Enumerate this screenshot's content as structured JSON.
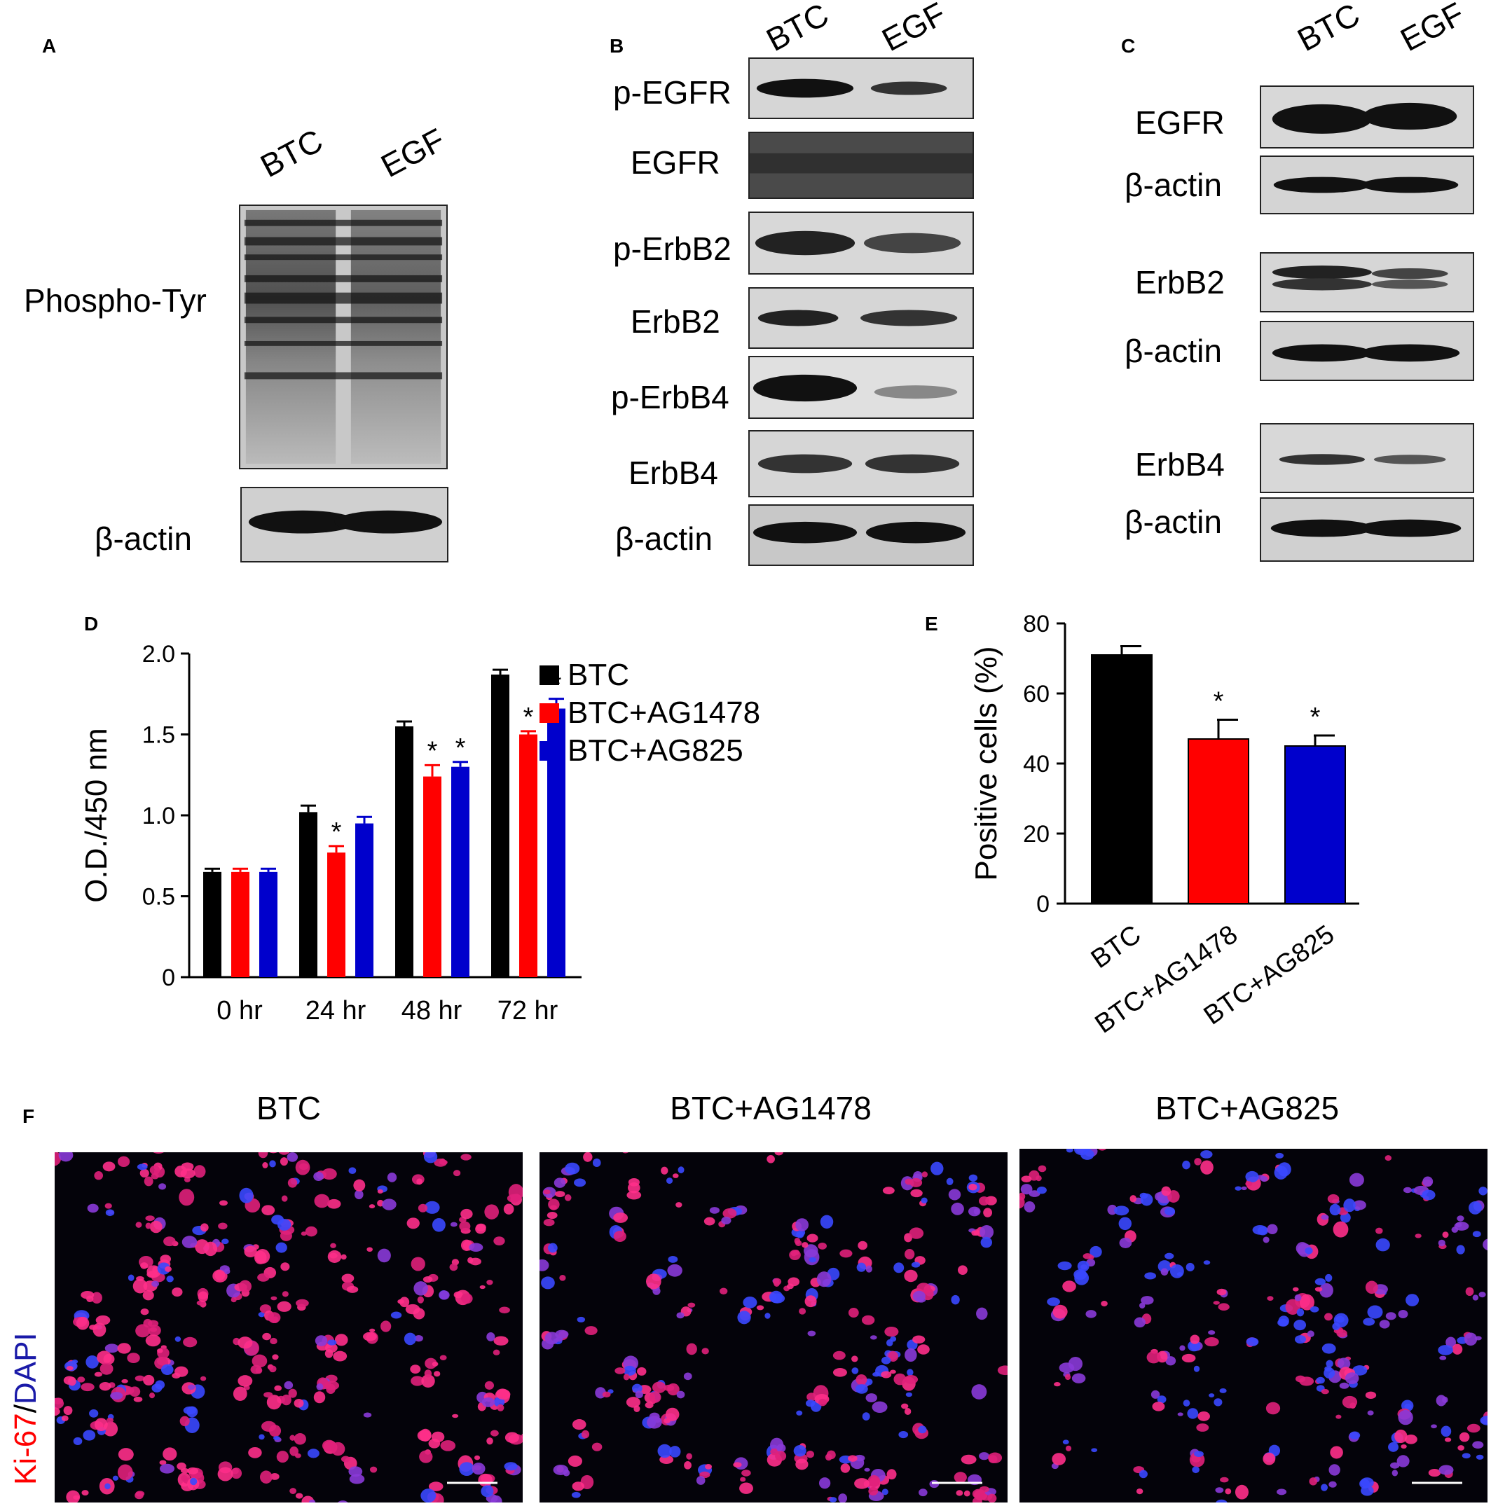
{
  "panels": {
    "A": {
      "letter": "A",
      "lanes": [
        "BTC",
        "EGF"
      ],
      "labels": {
        "phospho": "Phospho-Tyr",
        "actin": "β-actin"
      }
    },
    "B": {
      "letter": "B",
      "lanes": [
        "BTC",
        "EGF"
      ],
      "rows": [
        "p-EGFR",
        "EGFR",
        "p-ErbB2",
        "ErbB2",
        "p-ErbB4",
        "ErbB4",
        "β-actin"
      ]
    },
    "C": {
      "letter": "C",
      "lanes": [
        "BTC",
        "EGF"
      ],
      "rows": [
        "EGFR",
        "β-actin",
        "ErbB2",
        "β-actin",
        "ErbB4",
        "β-actin"
      ]
    },
    "D": {
      "letter": "D"
    },
    "E": {
      "letter": "E"
    },
    "F": {
      "letter": "F",
      "titles": [
        "BTC",
        "BTC+AG1478",
        "BTC+AG825"
      ],
      "stain_label": {
        "red": "Ki-67",
        "slash": "/",
        "blue": "DAPI"
      }
    }
  },
  "chart_data": [
    {
      "panel": "D",
      "type": "bar",
      "categories": [
        "0 hr",
        "24 hr",
        "48 hr",
        "72 hr"
      ],
      "ylabel": "O.D./450 nm",
      "xlabel": "",
      "ylim": [
        0,
        2.0
      ],
      "yticks": [
        "0",
        "0.5",
        "1.0",
        "1.5",
        "2.0"
      ],
      "ytick_values": [
        0,
        0.5,
        1.0,
        1.5,
        2.0
      ],
      "legend": "right",
      "significance_marker": "*",
      "series": [
        {
          "name": "BTC",
          "color": "#000000",
          "values": [
            0.65,
            1.02,
            1.55,
            1.87
          ],
          "errors": [
            0.02,
            0.04,
            0.03,
            0.03
          ],
          "significant": [
            false,
            false,
            false,
            false
          ]
        },
        {
          "name": "BTC+AG1478",
          "color": "#ff0000",
          "values": [
            0.65,
            0.77,
            1.24,
            1.5
          ],
          "errors": [
            0.02,
            0.04,
            0.07,
            0.02
          ],
          "significant": [
            false,
            true,
            true,
            true
          ]
        },
        {
          "name": "BTC+AG825",
          "color": "#0000cc",
          "values": [
            0.65,
            0.95,
            1.3,
            1.66
          ],
          "errors": [
            0.02,
            0.04,
            0.03,
            0.06
          ],
          "significant": [
            false,
            false,
            true,
            true
          ]
        }
      ]
    },
    {
      "panel": "E",
      "type": "bar",
      "categories": [
        "BTC",
        "BTC+AG1478",
        "BTC+AG825"
      ],
      "ylabel": "Positive cells (%)",
      "xlabel": "",
      "ylim": [
        0,
        80
      ],
      "yticks": [
        "0",
        "20",
        "40",
        "60",
        "80"
      ],
      "ytick_values": [
        0,
        20,
        40,
        60,
        80
      ],
      "significance_marker": "*",
      "colors": [
        "#000000",
        "#ff0000",
        "#0000cc"
      ],
      "values": [
        71,
        47,
        45
      ],
      "errors": [
        2.5,
        5.5,
        3
      ],
      "significant": [
        false,
        true,
        true
      ]
    }
  ]
}
